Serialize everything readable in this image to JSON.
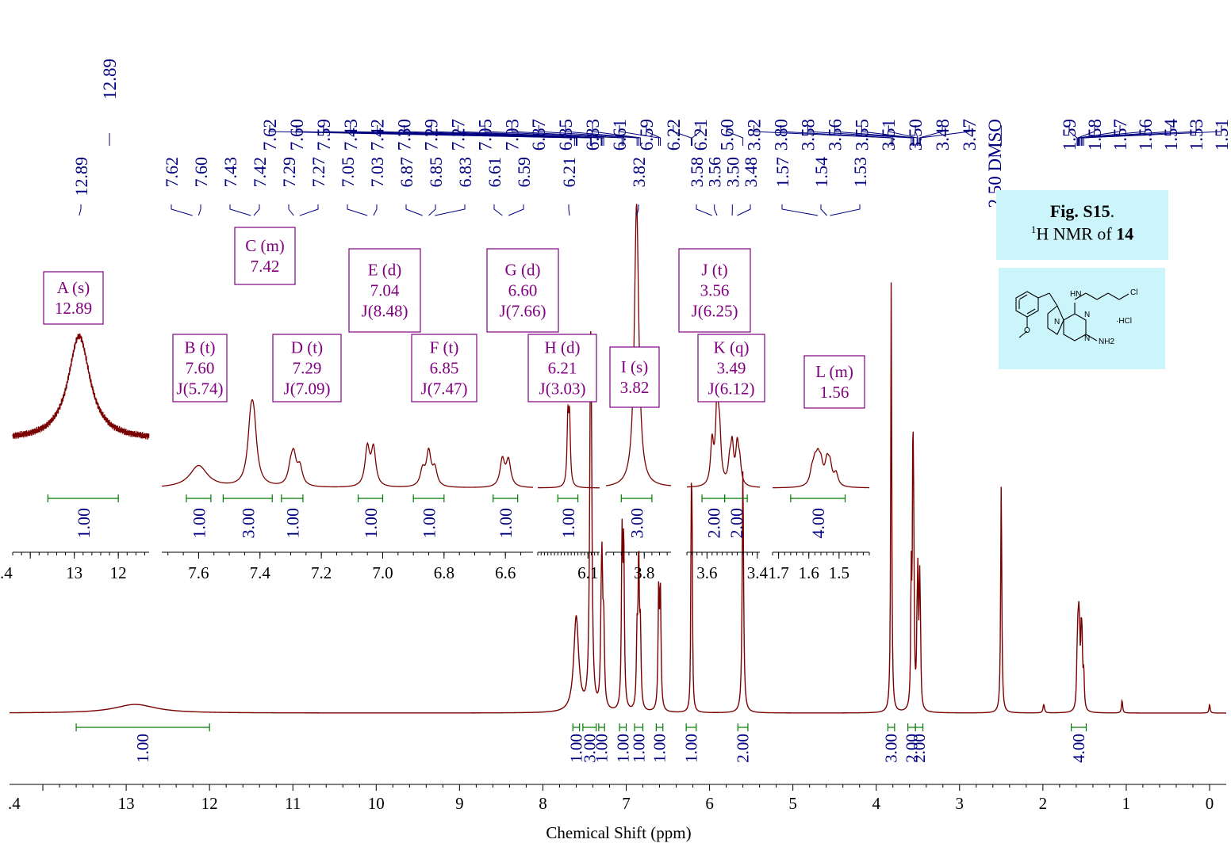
{
  "caption": {
    "fig_label": "Fig. S15",
    "fig_suffix": ".",
    "nucleus_super": "1",
    "nucleus_text": "H NMR of ",
    "compound": "14"
  },
  "structure": {
    "labels": [
      "HN",
      "Cl",
      "N",
      "N",
      "N",
      "NH2",
      "·HCl",
      "O"
    ]
  },
  "chart_data": {
    "type": "line",
    "title": "",
    "xlabel": "Chemical Shift (ppm)",
    "ylabel": "",
    "xlim": [
      14.4,
      -0.2
    ],
    "x_reversed": true,
    "x_ticks": [
      ".4",
      "13",
      "12",
      "11",
      "10",
      "9",
      "8",
      "7",
      "6",
      "5",
      "4",
      "3",
      "2",
      "1",
      "0"
    ],
    "x_tick_values": [
      14,
      13,
      12,
      11,
      10,
      9,
      8,
      7,
      6,
      5,
      4,
      3,
      2,
      1,
      0
    ],
    "colors": {
      "spectrum": "#7a0000",
      "integral": "#007a00",
      "peak_label": "#000080",
      "assignment": "#800080"
    },
    "solvent_label": "2.50 DMSO",
    "top_peak_labels": [
      "12.89",
      "7.62",
      "7.60",
      "7.59",
      "7.43",
      "7.42",
      "7.30",
      "7.29",
      "7.27",
      "7.05",
      "7.03",
      "6.87",
      "6.85",
      "6.83",
      "6.61",
      "6.59",
      "6.22",
      "6.21",
      "5.60",
      "3.82",
      "3.80",
      "3.58",
      "3.56",
      "3.55",
      "3.51",
      "3.50",
      "3.48",
      "3.47",
      "1.59",
      "1.58",
      "1.57",
      "1.56",
      "1.54",
      "1.53",
      "1.51"
    ],
    "peaks": [
      {
        "ppm": 12.89,
        "height": 0.02,
        "width": 0.3
      },
      {
        "ppm": 7.6,
        "height": 0.22,
        "width": 0.035
      },
      {
        "ppm": 7.43,
        "height": 0.52,
        "width": 0.012
      },
      {
        "ppm": 7.42,
        "height": 0.5,
        "width": 0.012
      },
      {
        "ppm": 7.3,
        "height": 0.15,
        "width": 0.01
      },
      {
        "ppm": 7.29,
        "height": 0.27,
        "width": 0.01
      },
      {
        "ppm": 7.27,
        "height": 0.18,
        "width": 0.01
      },
      {
        "ppm": 7.05,
        "height": 0.38,
        "width": 0.009
      },
      {
        "ppm": 7.03,
        "height": 0.37,
        "width": 0.009
      },
      {
        "ppm": 6.87,
        "height": 0.16,
        "width": 0.009
      },
      {
        "ppm": 6.85,
        "height": 0.34,
        "width": 0.009
      },
      {
        "ppm": 6.83,
        "height": 0.17,
        "width": 0.009
      },
      {
        "ppm": 6.61,
        "height": 0.27,
        "width": 0.009
      },
      {
        "ppm": 6.59,
        "height": 0.26,
        "width": 0.009
      },
      {
        "ppm": 6.22,
        "height": 0.42,
        "width": 0.006
      },
      {
        "ppm": 6.21,
        "height": 0.41,
        "width": 0.006
      },
      {
        "ppm": 5.6,
        "height": 0.56,
        "width": 0.01
      },
      {
        "ppm": 3.82,
        "height": 1.0,
        "width": 0.007
      },
      {
        "ppm": 3.58,
        "height": 0.29,
        "width": 0.007
      },
      {
        "ppm": 3.56,
        "height": 0.56,
        "width": 0.007
      },
      {
        "ppm": 3.55,
        "height": 0.3,
        "width": 0.007
      },
      {
        "ppm": 3.51,
        "height": 0.14,
        "width": 0.007
      },
      {
        "ppm": 3.5,
        "height": 0.26,
        "width": 0.007
      },
      {
        "ppm": 3.48,
        "height": 0.26,
        "width": 0.007
      },
      {
        "ppm": 3.47,
        "height": 0.14,
        "width": 0.007
      },
      {
        "ppm": 2.5,
        "height": 0.53,
        "width": 0.008
      },
      {
        "ppm": 1.99,
        "height": 0.02,
        "width": 0.01
      },
      {
        "ppm": 1.59,
        "height": 0.08,
        "width": 0.008
      },
      {
        "ppm": 1.58,
        "height": 0.12,
        "width": 0.008
      },
      {
        "ppm": 1.57,
        "height": 0.14,
        "width": 0.008
      },
      {
        "ppm": 1.56,
        "height": 0.12,
        "width": 0.008
      },
      {
        "ppm": 1.54,
        "height": 0.14,
        "width": 0.008
      },
      {
        "ppm": 1.53,
        "height": 0.12,
        "width": 0.008
      },
      {
        "ppm": 1.51,
        "height": 0.08,
        "width": 0.008
      },
      {
        "ppm": 1.05,
        "height": 0.03,
        "width": 0.008
      },
      {
        "ppm": 0.0,
        "height": 0.02,
        "width": 0.008
      }
    ],
    "integrals": [
      {
        "from": 13.6,
        "to": 12.0,
        "value": "1.00"
      },
      {
        "from": 7.64,
        "to": 7.56,
        "value": "1.00"
      },
      {
        "from": 7.52,
        "to": 7.36,
        "value": "3.00"
      },
      {
        "from": 7.33,
        "to": 7.26,
        "value": "1.00"
      },
      {
        "from": 7.08,
        "to": 7.0,
        "value": "1.00"
      },
      {
        "from": 6.9,
        "to": 6.8,
        "value": "1.00"
      },
      {
        "from": 6.64,
        "to": 6.56,
        "value": "1.00"
      },
      {
        "from": 6.28,
        "to": 6.16,
        "value": "1.00"
      },
      {
        "from": 5.66,
        "to": 5.54,
        "value": "2.00"
      },
      {
        "from": 3.86,
        "to": 3.78,
        "value": "3.00"
      },
      {
        "from": 3.62,
        "to": 3.53,
        "value": "2.00"
      },
      {
        "from": 3.53,
        "to": 3.44,
        "value": "2.00"
      },
      {
        "from": 1.66,
        "to": 1.48,
        "value": "4.00"
      }
    ],
    "insets": [
      {
        "id": "inset-A",
        "xlim": [
          14.4,
          11.3
        ],
        "ticks": [
          ".4",
          "13",
          "12"
        ],
        "tick_values": [
          14,
          13,
          12
        ],
        "peak_labels": [
          "12.89"
        ],
        "integral_values": [
          "1.00"
        ],
        "assignments": [
          {
            "name": "A (s)",
            "shift": "12.89",
            "j": ""
          }
        ]
      },
      {
        "id": "inset-aromatic",
        "xlim": [
          7.72,
          6.51
        ],
        "ticks": [
          "7.6",
          "7.4",
          "7.2",
          "7.0",
          "6.8",
          "6.6"
        ],
        "tick_values": [
          7.6,
          7.4,
          7.2,
          7.0,
          6.8,
          6.6
        ],
        "peak_labels": [
          "7.62",
          "7.60",
          "7.43",
          "7.42",
          "7.29",
          "7.27",
          "7.05",
          "7.03",
          "6.87",
          "6.85",
          "6.83",
          "6.61",
          "6.59"
        ],
        "integral_values": [
          "1.00",
          "3.00",
          "1.00",
          "1.00",
          "1.00",
          "1.00"
        ],
        "assignments": [
          {
            "name": "B (t)",
            "shift": "7.60",
            "j": "J(5.74)"
          },
          {
            "name": "C (m)",
            "shift": "7.42",
            "j": ""
          },
          {
            "name": "D (t)",
            "shift": "7.29",
            "j": "J(7.09)"
          },
          {
            "name": "E (d)",
            "shift": "7.04",
            "j": "J(8.48)"
          },
          {
            "name": "F (t)",
            "shift": "6.85",
            "j": "J(7.47)"
          },
          {
            "name": "G (d)",
            "shift": "6.60",
            "j": "J(7.66)"
          }
        ]
      },
      {
        "id": "inset-H",
        "xlim": [
          6.4,
          6.03
        ],
        "ticks": [
          "6.1"
        ],
        "tick_values": [
          6.1
        ],
        "peak_labels": [
          "6.21"
        ],
        "integral_values": [
          "1.00"
        ],
        "assignments": [
          {
            "name": "H (d)",
            "shift": "6.21",
            "j": "J(3.03)"
          }
        ]
      },
      {
        "id": "inset-I",
        "xlim": [
          3.9,
          3.73
        ],
        "ticks": [
          "3.8"
        ],
        "tick_values": [
          3.8
        ],
        "peak_labels": [
          "3.82"
        ],
        "integral_values": [
          "3.00"
        ],
        "assignments": [
          {
            "name": "I (s)",
            "shift": "3.82",
            "j": ""
          }
        ]
      },
      {
        "id": "inset-JK",
        "xlim": [
          3.68,
          3.39
        ],
        "ticks": [
          "3.6",
          "3.4"
        ],
        "tick_values": [
          3.6,
          3.4
        ],
        "peak_labels": [
          "3.58",
          "3.56",
          "3.50",
          "3.48"
        ],
        "integral_values": [
          "2.00",
          "2.00"
        ],
        "assignments": [
          {
            "name": "J (t)",
            "shift": "3.56",
            "j": "J(6.25)"
          },
          {
            "name": "K (q)",
            "shift": "3.49",
            "j": "J(6.12)"
          }
        ]
      },
      {
        "id": "inset-L",
        "xlim": [
          1.72,
          1.4
        ],
        "ticks": [
          "1.7",
          "1.6",
          "1.5"
        ],
        "tick_values": [
          1.7,
          1.6,
          1.5
        ],
        "peak_labels": [
          "1.57",
          "1.54",
          "1.53"
        ],
        "integral_values": [
          "4.00"
        ],
        "assignments": [
          {
            "name": "L (m)",
            "shift": "1.56",
            "j": ""
          }
        ]
      }
    ]
  }
}
